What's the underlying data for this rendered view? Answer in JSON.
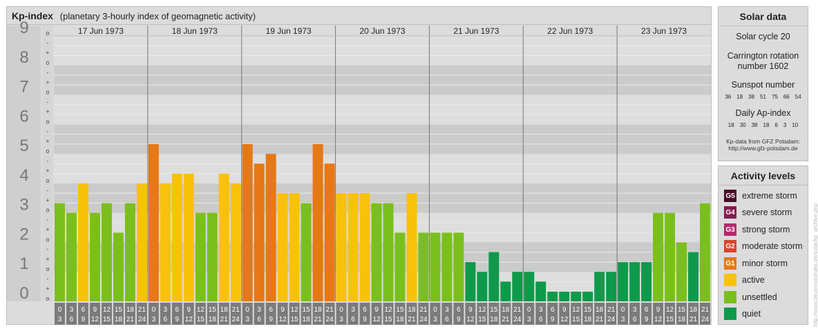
{
  "header": {
    "title": "Kp-index",
    "subtitle": "(planetary 3-hourly index of geomagnetic activity)"
  },
  "chart_data": {
    "type": "bar",
    "title": "Kp-index",
    "subtitle": "(planetary 3-hourly index of geomagnetic activity)",
    "ylim": [
      0,
      9
    ],
    "y_major_ticks": [
      "0",
      "1",
      "2",
      "3",
      "4",
      "5",
      "6",
      "7",
      "8",
      "9"
    ],
    "y_minor_ticks": [
      "o",
      "+",
      "-"
    ],
    "days": [
      "17 Jun 1973",
      "18 Jun 1973",
      "19 Jun 1973",
      "20 Jun 1973",
      "21 Jun 1973",
      "22 Jun 1973",
      "23 Jun 1973"
    ],
    "interval_tick_top": [
      "0",
      "3",
      "6",
      "9",
      "12",
      "15",
      "18",
      "21"
    ],
    "interval_tick_bottom": [
      "3",
      "6",
      "9",
      "12",
      "15",
      "18",
      "21",
      "24"
    ],
    "values": [
      3.33,
      3.0,
      4.0,
      3.0,
      3.33,
      2.33,
      3.33,
      4.0,
      5.33,
      4.0,
      4.33,
      4.33,
      3.0,
      3.0,
      4.33,
      4.0,
      5.33,
      4.67,
      5.0,
      3.67,
      3.67,
      3.33,
      5.33,
      4.67,
      3.67,
      3.67,
      3.67,
      3.33,
      3.33,
      2.33,
      3.67,
      2.33,
      2.33,
      2.33,
      2.33,
      1.33,
      1.0,
      1.67,
      0.67,
      1.0,
      1.0,
      0.67,
      0.33,
      0.33,
      0.33,
      0.33,
      1.0,
      1.0,
      1.33,
      1.33,
      1.33,
      3.0,
      3.0,
      2.0,
      1.67,
      3.33
    ],
    "colors": {
      "quiet": "#0e9a4a",
      "unsettled": "#7bbf1e",
      "active": "#f8c20a",
      "minor storm": "#e67816",
      "moderate storm": "#d9432b",
      "strong storm": "#b52a6e",
      "severe storm": "#871a50",
      "extreme storm": "#4b0a28"
    }
  },
  "solar": {
    "heading": "Solar data",
    "cycle": "Solar cycle 20",
    "carrington_line1": "Carrington rotation",
    "carrington_line2": "number 1602",
    "sunspot_label": "Sunspot number",
    "sunspot_numbers": [
      "36",
      "18",
      "38",
      "51",
      "75",
      "66",
      "54"
    ],
    "ap_label": "Daily Ap-index",
    "ap_values": [
      "18",
      "30",
      "38",
      "18",
      "6",
      "3",
      "10"
    ],
    "source_line1": "Kp-data from GFZ Potsdam:",
    "source_line2": "http://www.gfz-potsdam.de"
  },
  "levels": {
    "heading": "Activity levels",
    "items": [
      {
        "badge": "G5",
        "label": "extreme storm",
        "color": "#4b0a28"
      },
      {
        "badge": "G4",
        "label": "severe storm",
        "color": "#871a50"
      },
      {
        "badge": "G3",
        "label": "strong storm",
        "color": "#b52a6e"
      },
      {
        "badge": "G2",
        "label": "moderate storm",
        "color": "#d9432b"
      },
      {
        "badge": "G1",
        "label": "minor storm",
        "color": "#e67816"
      },
      {
        "badge": "",
        "label": "active",
        "color": "#f8c20a"
      },
      {
        "badge": "",
        "label": "unsettled",
        "color": "#7bbf1e"
      },
      {
        "badge": "",
        "label": "quiet",
        "color": "#0e9a4a"
      }
    ]
  },
  "watermark": "http://www.tieusmaschaks.de/solar/kp_archive.php"
}
